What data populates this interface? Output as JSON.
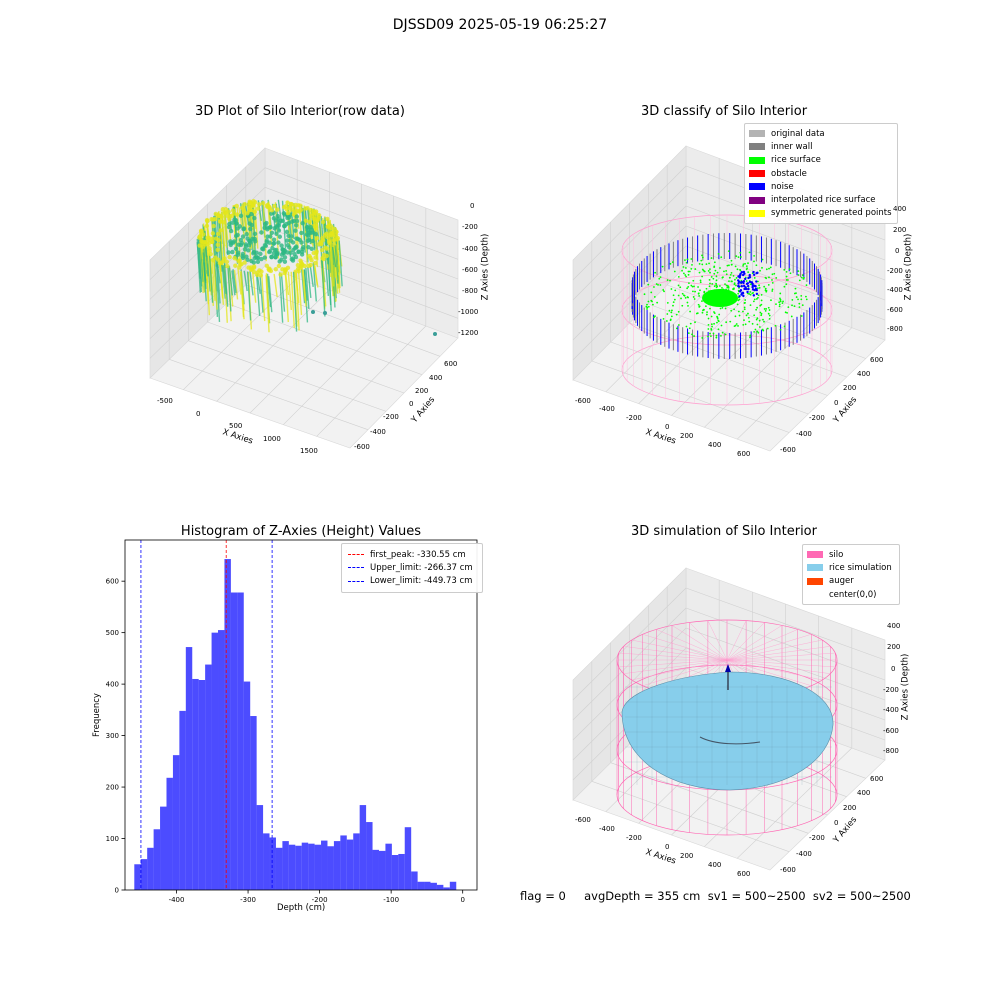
{
  "figure_title": "DJSSD09 2025-05-19 06:25:27",
  "footer": {
    "text": "flag = 0     avgDepth = 355 cm  sv1 = 500~2500  sv2 = 500~2500"
  },
  "chart_data": [
    {
      "type": "scatter3d",
      "title": "3D Plot of Silo Interior(row data)",
      "xlabel": "X Axies",
      "ylabel": "Y Axies",
      "zlabel": "Z Axies (Depth)",
      "x_ticks": [
        "-500",
        "0",
        "500",
        "1000",
        "1500"
      ],
      "y_ticks": [
        "600",
        "400",
        "200",
        "0",
        "-200",
        "-400",
        "-600"
      ],
      "z_ticks": [
        "0",
        "-200",
        "-400",
        "-600",
        "-800",
        "-1000",
        "-1200"
      ],
      "colors": {
        "surface_high": "#e3e61a",
        "surface_low": "#2db883",
        "outlier": "#3a9e98"
      }
    },
    {
      "type": "scatter3d",
      "title": "3D classify of Silo Interior",
      "xlabel": "X Axies",
      "ylabel": "Y Axies",
      "zlabel": "Z Axies (Depth)",
      "x_ticks": [
        "-600",
        "-400",
        "-200",
        "0",
        "200",
        "400",
        "600"
      ],
      "y_ticks": [
        "600",
        "400",
        "200",
        "0",
        "-200",
        "-400",
        "-600"
      ],
      "z_ticks": [
        "400",
        "200",
        "0",
        "-200",
        "-400",
        "-600",
        "-800"
      ],
      "legend": [
        {
          "label": "original data",
          "color": "#b3b3b3"
        },
        {
          "label": "inner wall",
          "color": "#808080"
        },
        {
          "label": "rice surface",
          "color": "#00ff00"
        },
        {
          "label": "obstacle",
          "color": "#ff0000"
        },
        {
          "label": "noise",
          "color": "#0000ff"
        },
        {
          "label": "interpolated rice surface",
          "color": "#800080"
        },
        {
          "label": "symmetric generated points",
          "color": "#ffff00"
        }
      ]
    },
    {
      "type": "histogram",
      "title": "Histogram of Z-Axies (Height) Values",
      "xlabel": "Depth (cm)",
      "ylabel": "Frequency",
      "xlim": [
        -472,
        20
      ],
      "ylim": [
        0,
        680
      ],
      "bin_width": 9.0,
      "bin_start": -459,
      "counts": [
        50,
        60,
        82,
        118,
        162,
        218,
        262,
        348,
        472,
        410,
        408,
        438,
        500,
        505,
        643,
        578,
        578,
        405,
        338,
        165,
        110,
        102,
        82,
        95,
        88,
        86,
        92,
        90,
        88,
        96,
        85,
        95,
        106,
        98,
        110,
        165,
        132,
        78,
        76,
        90,
        68,
        70,
        122,
        36,
        16,
        16,
        14,
        10,
        5,
        16
      ],
      "x_ticks": [
        -400,
        -300,
        -200,
        -100,
        0
      ],
      "y_ticks": [
        0,
        100,
        200,
        300,
        400,
        500,
        600
      ],
      "bar_color": "#0000ff",
      "vlines": [
        {
          "label": "first_peak: -330.55 cm",
          "value": -330.55,
          "color": "#ff0000"
        },
        {
          "label": "Upper_limit: -266.37 cm",
          "value": -266.37,
          "color": "#0000ff"
        },
        {
          "label": "Lower_limit: -449.73 cm",
          "value": -449.73,
          "color": "#0000ff"
        }
      ]
    },
    {
      "type": "surface3d",
      "title": "3D simulation of Silo Interior",
      "xlabel": "X Axies",
      "ylabel": "Y Axies",
      "zlabel": "Z Axies (Depth)",
      "x_ticks": [
        "-600",
        "-400",
        "-200",
        "0",
        "200",
        "400",
        "600"
      ],
      "y_ticks": [
        "600",
        "400",
        "200",
        "0",
        "-200",
        "-400",
        "-600"
      ],
      "z_ticks": [
        "400",
        "200",
        "0",
        "-200",
        "-400",
        "-600",
        "-800"
      ],
      "legend": [
        {
          "label": "silo",
          "color": "#ff69b4"
        },
        {
          "label": "rice simulation",
          "color": "#87ceeb"
        },
        {
          "label": "auger",
          "color": "#ff4500"
        },
        {
          "label": "center(0,0)",
          "color": "#ffffff"
        }
      ]
    }
  ]
}
